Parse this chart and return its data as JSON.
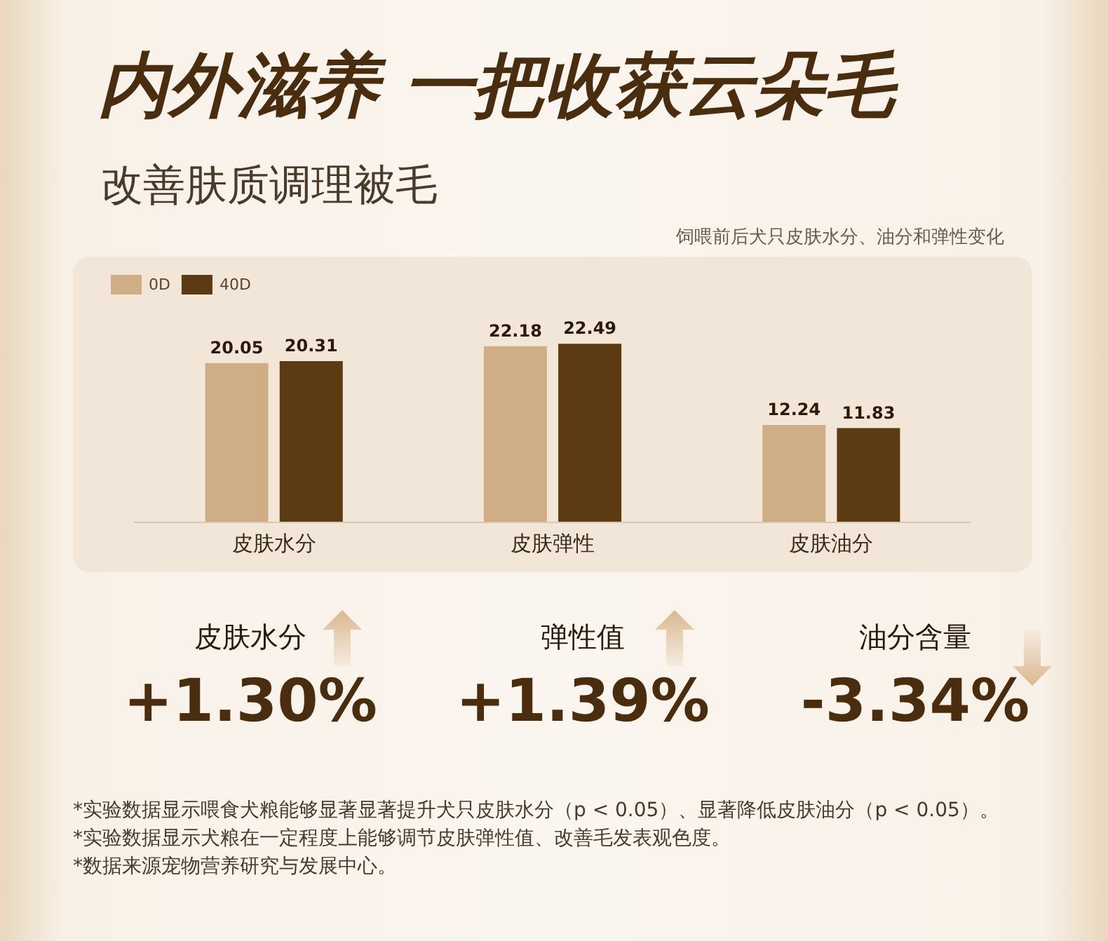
{
  "chart_data": {
    "type": "bar",
    "title": "内外滋养 一把收获云朵毛",
    "subtitle": "改善肤质调理被毛",
    "categories": [
      "皮肤水分",
      "皮肤弹性",
      "皮肤油分"
    ],
    "series": [
      {
        "name": "0D",
        "color": "#cfae86",
        "values": [
          20.05,
          22.18,
          12.24
        ]
      },
      {
        "name": "40D",
        "color": "#5c3a12",
        "values": [
          20.31,
          22.49,
          11.83
        ]
      }
    ],
    "tick_labels": "x",
    "legend": "top left",
    "data_labels": true,
    "annotations": [
      "饲喂前后犬只皮肤水分、油分和弹性变化",
      "皮肤水分",
      "+1.30%",
      "弹性值",
      "+1.39%",
      "油分含量",
      "-3.34%",
      "*实验数据显示喂食犬粮能够显著显著提升犬只皮肤水分（p < 0.05）、显著降低皮肤油分（p < 0.05）。",
      "*实验数据显示犬粮在一定程度上能够调节皮肤弹性值、改善毛发表观色度。",
      "*数据来源宠物营养研究与发展中心。"
    ]
  }
}
